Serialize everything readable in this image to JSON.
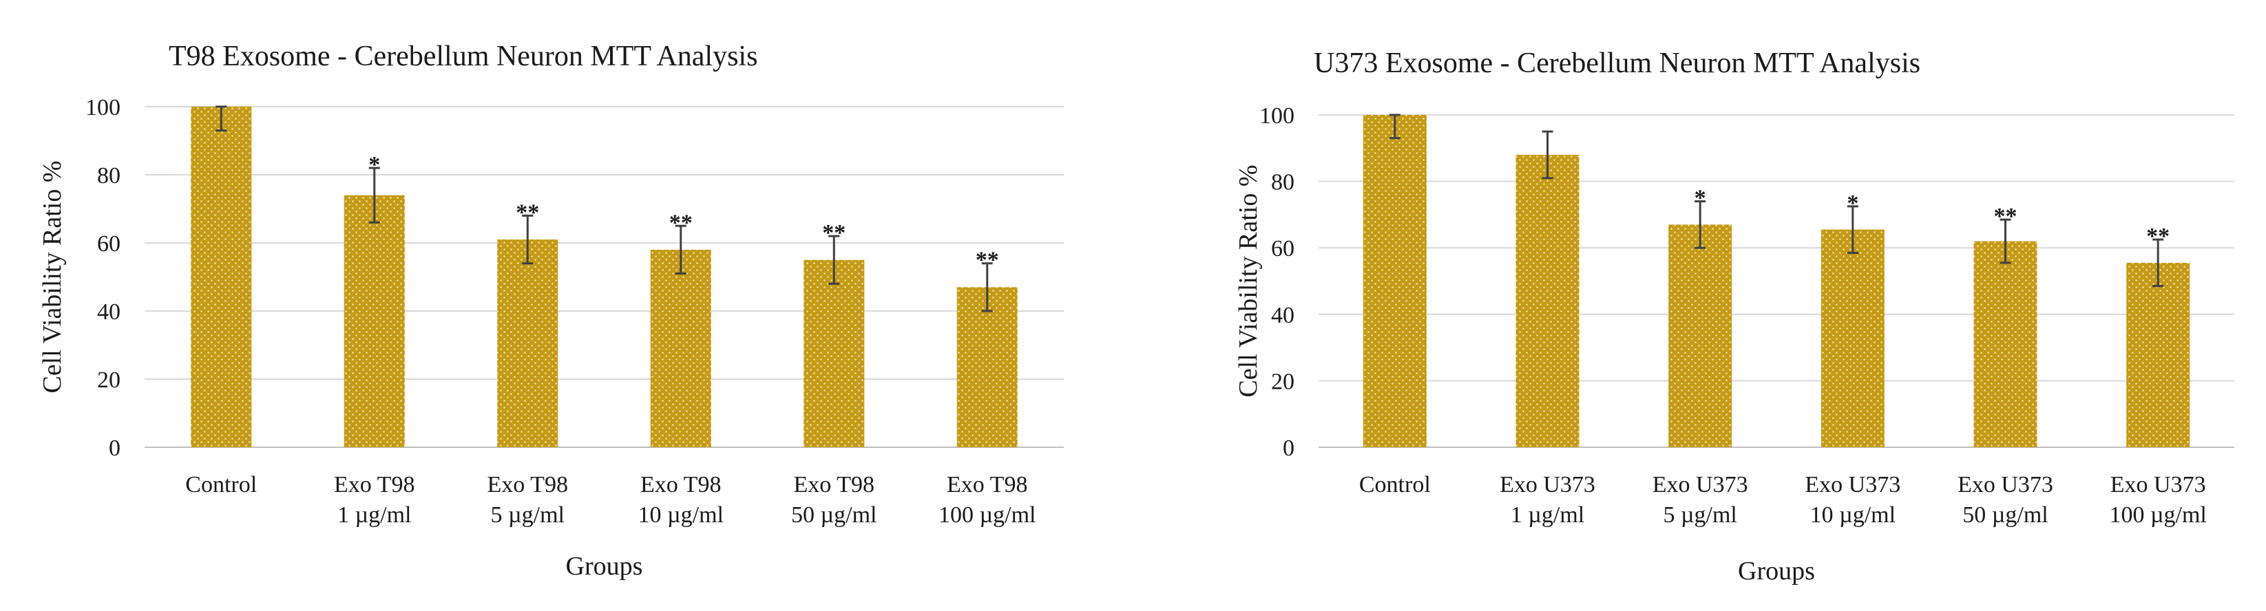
{
  "chart_data": [
    {
      "type": "bar",
      "title": "T98 Exosome - Cerebellum Neuron MTT Analysis",
      "xlabel": "Groups",
      "ylabel": "Cell Viability Ratio %",
      "ylim": [
        0,
        100
      ],
      "yticks": [
        "0",
        "20",
        "40",
        "60",
        "80",
        "100"
      ],
      "grid": true,
      "categories": [
        [
          "Control"
        ],
        [
          "Exo T98",
          "1 µg/ml"
        ],
        [
          "Exo T98",
          "5 µg/ml"
        ],
        [
          "Exo T98",
          "10 µg/ml"
        ],
        [
          "Exo T98",
          "50 µg/ml"
        ],
        [
          "Exo T98",
          "100 µg/ml"
        ]
      ],
      "values": [
        100,
        74,
        61,
        58,
        55,
        47
      ],
      "errors": [
        7,
        8,
        7,
        7,
        7,
        7
      ],
      "significance": [
        "",
        "*",
        "**",
        "**",
        "**",
        "**"
      ],
      "bar_color": "#C49A17",
      "dot_color": "#F3E3A6",
      "error_color": "#404040",
      "grid_color": "#D9D9D9"
    },
    {
      "type": "bar",
      "title": "U373 Exosome - Cerebellum Neuron MTT Analysis",
      "xlabel": "Groups",
      "ylabel": "Cell Viability Ratio %",
      "ylim": [
        0,
        100
      ],
      "yticks": [
        "0",
        "20",
        "40",
        "60",
        "80",
        "100"
      ],
      "grid": true,
      "categories": [
        [
          "Control"
        ],
        [
          "Exo U373",
          "1 µg/ml"
        ],
        [
          "Exo U373",
          "5 µg/ml"
        ],
        [
          "Exo U373",
          "10 µg/ml"
        ],
        [
          "Exo U373",
          "50 µg/ml"
        ],
        [
          "Exo U373",
          "100 µg/ml"
        ]
      ],
      "values": [
        100,
        88,
        67,
        65.5,
        62,
        55.5
      ],
      "errors": [
        7,
        7,
        7,
        7,
        6.5,
        7
      ],
      "significance": [
        "",
        "",
        "*",
        "*",
        "**",
        "**"
      ],
      "bar_color": "#C49A17",
      "dot_color": "#F3E3A6",
      "error_color": "#404040",
      "grid_color": "#D9D9D9"
    }
  ]
}
